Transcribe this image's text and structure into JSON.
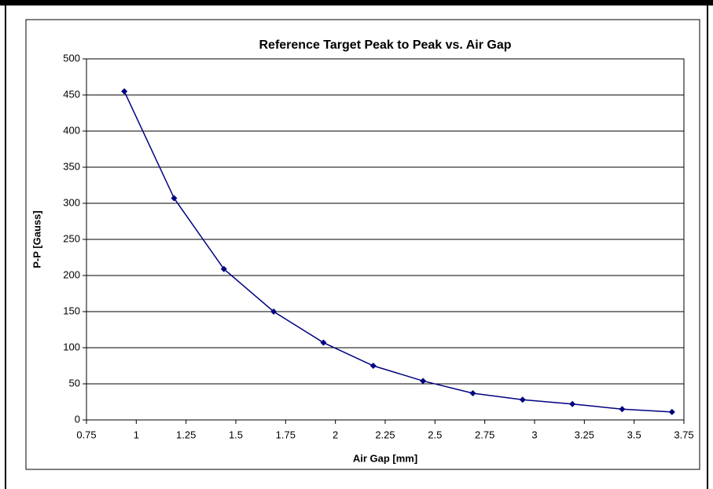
{
  "chart_data": {
    "type": "line",
    "title": "Reference Target Peak to Peak vs. Air Gap",
    "xlabel": "Air Gap [mm]",
    "ylabel": "P-P [Gauss]",
    "x": [
      0.94,
      1.19,
      1.44,
      1.69,
      1.94,
      2.19,
      2.44,
      2.69,
      2.94,
      3.19,
      3.44,
      3.69
    ],
    "values": [
      455,
      307,
      209,
      150,
      107,
      75,
      54,
      37,
      28,
      22,
      15,
      11
    ],
    "color": "#000080",
    "xlim": [
      0.75,
      3.75
    ],
    "xticks": [
      0.75,
      1,
      1.25,
      1.5,
      1.75,
      2,
      2.25,
      2.5,
      2.75,
      3,
      3.25,
      3.5,
      3.75
    ],
    "ylim": [
      0,
      500
    ],
    "yticks": [
      0,
      50,
      100,
      150,
      200,
      250,
      300,
      350,
      400,
      450,
      500
    ],
    "grid": true
  }
}
